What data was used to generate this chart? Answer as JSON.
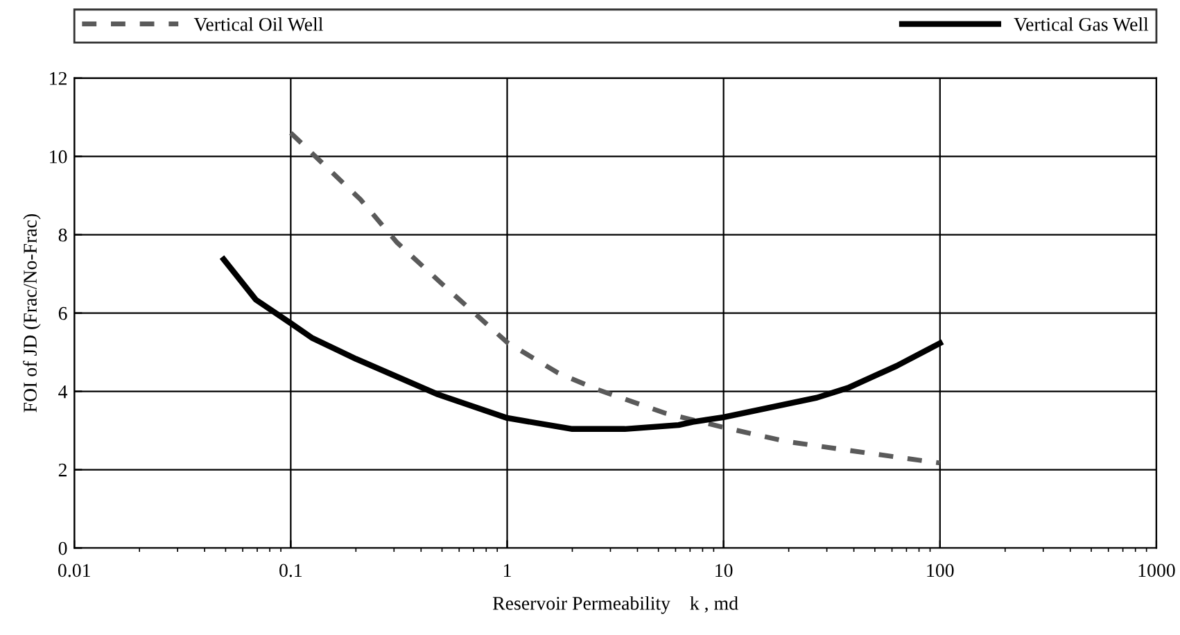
{
  "chart_data": {
    "type": "line",
    "xlabel": "Reservoir Permeability    k , md",
    "ylabel": "FOI of JD (Frac/No-Frac)",
    "log": "x",
    "xlim": [
      0.01,
      1000
    ],
    "xticks": [
      0.01,
      0.1,
      1,
      10,
      100,
      1000
    ],
    "ylim": [
      0,
      12
    ],
    "yticks": [
      0,
      2,
      4,
      6,
      8,
      10,
      12
    ],
    "grid": true,
    "legend": "top",
    "series": [
      {
        "name": "Vertical Oil Well",
        "color": "#5a5a5a",
        "line_style": "dashed",
        "x": [
          0.1,
          0.13,
          0.21,
          0.31,
          0.51,
          1.0,
          1.72,
          2.6,
          5.4,
          10,
          19.5,
          47,
          100
        ],
        "values": [
          10.6,
          10.0,
          8.9,
          7.8,
          6.7,
          5.25,
          4.47,
          4.05,
          3.44,
          3.08,
          2.72,
          2.42,
          2.17
        ]
      },
      {
        "name": "Vertical Gas Well",
        "color": "#000000",
        "line_style": "solid",
        "x": [
          0.049,
          0.069,
          0.1,
          0.125,
          0.2,
          0.48,
          1.0,
          2.0,
          3.5,
          6.2,
          7.2,
          10,
          27,
          38,
          63,
          100
        ],
        "values": [
          7.37,
          6.34,
          5.74,
          5.37,
          4.83,
          3.92,
          3.32,
          3.04,
          3.04,
          3.14,
          3.22,
          3.34,
          3.84,
          4.1,
          4.65,
          5.23
        ]
      }
    ]
  }
}
